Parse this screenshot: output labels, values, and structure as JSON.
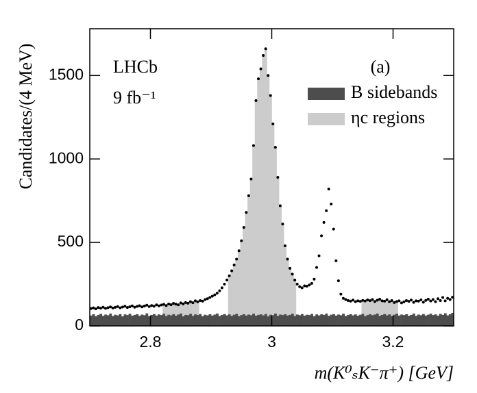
{
  "chart_data": {
    "type": "histogram",
    "y_label": "Candidates/(4 MeV)",
    "x_label": "m(K⁰ₛK⁻π⁺) [GeV]",
    "annotations": [
      "LHCb",
      "9 fb⁻¹",
      "(a)"
    ],
    "bins": [
      2.7,
      2.704,
      2.708,
      2.712,
      2.716,
      2.72,
      2.724,
      2.728,
      2.732,
      2.736,
      2.74,
      2.744,
      2.748,
      2.752,
      2.756,
      2.76,
      2.764,
      2.768,
      2.772,
      2.776,
      2.78,
      2.784,
      2.788,
      2.792,
      2.796,
      2.8,
      2.804,
      2.808,
      2.812,
      2.816,
      2.82,
      2.824,
      2.828,
      2.832,
      2.836,
      2.84,
      2.844,
      2.848,
      2.852,
      2.856,
      2.86,
      2.864,
      2.868,
      2.872,
      2.876,
      2.88,
      2.884,
      2.888,
      2.892,
      2.896,
      2.9,
      2.904,
      2.908,
      2.912,
      2.916,
      2.92,
      2.924,
      2.928,
      2.932,
      2.936,
      2.94,
      2.944,
      2.948,
      2.952,
      2.956,
      2.96,
      2.964,
      2.968,
      2.972,
      2.976,
      2.98,
      2.984,
      2.988,
      2.992,
      2.996,
      3,
      3.004,
      3.008,
      3.012,
      3.016,
      3.02,
      3.024,
      3.028,
      3.032,
      3.036,
      3.04,
      3.044,
      3.048,
      3.052,
      3.056,
      3.06,
      3.064,
      3.068,
      3.072,
      3.076,
      3.08,
      3.084,
      3.088,
      3.092,
      3.096,
      3.1,
      3.104,
      3.108,
      3.112,
      3.116,
      3.12,
      3.124,
      3.128,
      3.132,
      3.136,
      3.14,
      3.144,
      3.148,
      3.152,
      3.156,
      3.16,
      3.164,
      3.168,
      3.172,
      3.176,
      3.18,
      3.184,
      3.188,
      3.192,
      3.196,
      3.2,
      3.204,
      3.208,
      3.212,
      3.216,
      3.22,
      3.224,
      3.228,
      3.232,
      3.236,
      3.24,
      3.244,
      3.248,
      3.252,
      3.256,
      3.26,
      3.264,
      3.268,
      3.272,
      3.276,
      3.28,
      3.284,
      3.288,
      3.292,
      3.296,
      3.3
    ],
    "values": [
      104,
      108,
      102,
      110,
      106,
      112,
      105,
      109,
      114,
      107,
      111,
      116,
      108,
      113,
      118,
      110,
      115,
      120,
      112,
      117,
      121,
      114,
      119,
      124,
      116,
      122,
      118,
      126,
      120,
      125,
      129,
      122,
      131,
      127,
      135,
      130,
      126,
      138,
      132,
      140,
      136,
      145,
      139,
      150,
      144,
      152,
      148,
      158,
      163,
      170,
      178,
      186,
      196,
      210,
      228,
      250,
      275,
      300,
      330,
      365,
      400,
      450,
      510,
      590,
      680,
      780,
      880,
      1080,
      1350,
      1480,
      1540,
      1620,
      1660,
      1500,
      1380,
      1210,
      1070,
      890,
      720,
      610,
      480,
      400,
      345,
      310,
      275,
      250,
      235,
      228,
      240,
      238,
      245,
      255,
      280,
      350,
      420,
      540,
      620,
      690,
      820,
      730,
      580,
      390,
      270,
      190,
      165,
      158,
      152,
      148,
      155,
      145,
      150,
      147,
      153,
      149,
      156,
      151,
      158,
      146,
      154,
      160,
      150,
      148,
      157,
      145,
      152,
      140,
      146,
      150,
      138,
      144,
      152,
      147,
      155,
      141,
      150,
      148,
      156,
      142,
      153,
      160,
      149,
      158,
      145,
      163,
      152,
      170,
      150,
      165,
      158,
      172
    ],
    "marker_color": "#000000",
    "series": [
      {
        "name": "ηc regions",
        "color": "#cccccc",
        "values": [
          null,
          null,
          null,
          null,
          null,
          null,
          null,
          null,
          null,
          null,
          null,
          null,
          null,
          null,
          null,
          null,
          null,
          null,
          null,
          null,
          null,
          null,
          null,
          null,
          null,
          null,
          null,
          null,
          null,
          null,
          129,
          122,
          131,
          127,
          135,
          130,
          126,
          138,
          132,
          140,
          136,
          145,
          139,
          150,
          144,
          null,
          null,
          null,
          null,
          null,
          null,
          null,
          null,
          null,
          null,
          null,
          null,
          300,
          330,
          365,
          400,
          450,
          510,
          590,
          680,
          780,
          880,
          1080,
          1350,
          1480,
          1540,
          1620,
          1660,
          1500,
          1380,
          1210,
          1070,
          890,
          720,
          610,
          480,
          400,
          345,
          310,
          275,
          null,
          null,
          null,
          null,
          null,
          null,
          null,
          null,
          null,
          null,
          null,
          null,
          null,
          null,
          null,
          null,
          null,
          null,
          null,
          null,
          null,
          null,
          null,
          null,
          null,
          null,
          null,
          153,
          149,
          156,
          151,
          158,
          146,
          154,
          160,
          150,
          148,
          157,
          145,
          152,
          140,
          146,
          null,
          null,
          null,
          null,
          null,
          null,
          null,
          null,
          null,
          null,
          null,
          null,
          null,
          null,
          null,
          null,
          null,
          null,
          null,
          null,
          null,
          null,
          null
        ]
      },
      {
        "name": "B sidebands",
        "color": "#4d4d4d",
        "values": [
          62,
          70,
          58,
          66,
          72,
          60,
          68,
          64,
          74,
          59,
          67,
          63,
          71,
          57,
          69,
          65,
          73,
          61,
          66,
          70,
          60,
          68,
          64,
          75,
          58,
          66,
          71,
          62,
          69,
          65,
          73,
          59,
          67,
          63,
          70,
          61,
          68,
          74,
          57,
          66,
          64,
          72,
          60,
          69,
          65,
          71,
          58,
          67,
          63,
          70,
          62,
          68,
          74,
          59,
          66,
          71,
          63,
          69,
          60,
          67,
          72,
          58,
          65,
          70,
          62,
          68,
          64,
          73,
          61,
          66,
          69,
          63,
          71,
          57,
          67,
          64,
          74,
          60,
          68,
          65,
          70,
          62,
          66,
          73,
          59,
          68,
          64,
          71,
          61,
          67,
          65,
          72,
          58,
          69,
          63,
          70,
          66,
          74,
          60,
          67,
          71,
          62,
          68,
          64,
          73,
          59,
          66,
          70,
          63,
          69,
          61,
          67,
          72,
          58,
          65,
          70,
          64,
          68,
          74,
          60,
          66,
          71,
          63,
          69,
          59,
          67,
          73,
          62,
          68,
          65,
          70,
          61,
          66,
          74,
          60,
          68,
          64,
          71,
          62,
          67,
          73,
          65,
          69,
          61,
          72,
          66,
          76,
          63,
          70,
          78
        ]
      }
    ],
    "xlim": [
      2.7,
      3.3
    ],
    "ylim": [
      0,
      1780
    ],
    "xticks": [
      2.8,
      3,
      3.2
    ],
    "yticks": [
      0,
      500,
      1000,
      1500
    ]
  }
}
